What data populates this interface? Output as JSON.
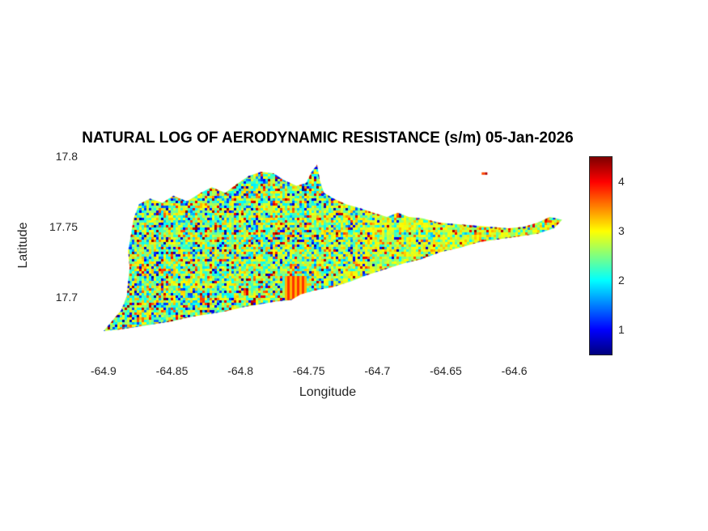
{
  "chart_data": {
    "type": "heatmap",
    "title": "NATURAL LOG OF AERODYNAMIC RESISTANCE (s/m) 05-Jan-2026",
    "xlabel": "Longitude",
    "ylabel": "Latitude",
    "xlim": [
      -64.9165,
      -64.556
    ],
    "ylim": [
      17.66,
      17.8
    ],
    "xticks": [
      -64.9,
      -64.85,
      -64.8,
      -64.75,
      -64.7,
      -64.65,
      -64.6
    ],
    "yticks": [
      17.8,
      17.75,
      17.7
    ],
    "colormap": "jet",
    "clim": [
      0.5,
      4.5
    ],
    "colorbar_ticks": [
      1,
      2,
      3,
      4
    ],
    "value_summary": {
      "typical_range": [
        2.0,
        3.3
      ],
      "extremes": [
        0.6,
        4.5
      ]
    },
    "stripe_patch": {
      "lon": [
        -64.768,
        -64.752
      ],
      "lat": [
        17.699,
        17.7165
      ],
      "values": [
        3.3,
        3.8
      ]
    },
    "islet_lonlat": [
      -64.622,
      17.788
    ],
    "outline_lonlat": [
      [
        -64.9,
        17.676
      ],
      [
        -64.894,
        17.683
      ],
      [
        -64.887,
        17.691
      ],
      [
        -64.883,
        17.701
      ],
      [
        -64.882,
        17.711
      ],
      [
        -64.881,
        17.721
      ],
      [
        -64.882,
        17.733
      ],
      [
        -64.88,
        17.744
      ],
      [
        -64.878,
        17.756
      ],
      [
        -64.874,
        17.766
      ],
      [
        -64.866,
        17.77
      ],
      [
        -64.857,
        17.767
      ],
      [
        -64.849,
        17.772
      ],
      [
        -64.839,
        17.768
      ],
      [
        -64.829,
        17.774
      ],
      [
        -64.821,
        17.778
      ],
      [
        -64.811,
        17.774
      ],
      [
        -64.803,
        17.78
      ],
      [
        -64.794,
        17.786
      ],
      [
        -64.785,
        17.789
      ],
      [
        -64.776,
        17.788
      ],
      [
        -64.768,
        17.783
      ],
      [
        -64.759,
        17.779
      ],
      [
        -64.752,
        17.781
      ],
      [
        -64.748,
        17.789
      ],
      [
        -64.744,
        17.794
      ],
      [
        -64.742,
        17.783
      ],
      [
        -64.739,
        17.774
      ],
      [
        -64.732,
        17.77
      ],
      [
        -64.723,
        17.766
      ],
      [
        -64.712,
        17.763
      ],
      [
        -64.703,
        17.76
      ],
      [
        -64.693,
        17.757
      ],
      [
        -64.685,
        17.76
      ],
      [
        -64.677,
        17.757
      ],
      [
        -64.667,
        17.756
      ],
      [
        -64.655,
        17.753
      ],
      [
        -64.643,
        17.752
      ],
      [
        -64.63,
        17.751
      ],
      [
        -64.617,
        17.75
      ],
      [
        -64.604,
        17.749
      ],
      [
        -64.593,
        17.75
      ],
      [
        -64.583,
        17.753
      ],
      [
        -64.574,
        17.757
      ],
      [
        -64.565,
        17.755
      ],
      [
        -64.571,
        17.749
      ],
      [
        -64.583,
        17.745
      ],
      [
        -64.597,
        17.743
      ],
      [
        -64.612,
        17.741
      ],
      [
        -64.626,
        17.739
      ],
      [
        -64.64,
        17.735
      ],
      [
        -64.654,
        17.732
      ],
      [
        -64.668,
        17.727
      ],
      [
        -64.681,
        17.724
      ],
      [
        -64.694,
        17.72
      ],
      [
        -64.707,
        17.716
      ],
      [
        -64.72,
        17.711
      ],
      [
        -64.733,
        17.707
      ],
      [
        -64.745,
        17.705
      ],
      [
        -64.756,
        17.702
      ],
      [
        -64.763,
        17.698
      ],
      [
        -64.774,
        17.697
      ],
      [
        -64.786,
        17.695
      ],
      [
        -64.798,
        17.693
      ],
      [
        -64.811,
        17.69
      ],
      [
        -64.824,
        17.688
      ],
      [
        -64.837,
        17.686
      ],
      [
        -64.85,
        17.683
      ],
      [
        -64.863,
        17.681
      ],
      [
        -64.876,
        17.679
      ],
      [
        -64.889,
        17.677
      ]
    ]
  }
}
